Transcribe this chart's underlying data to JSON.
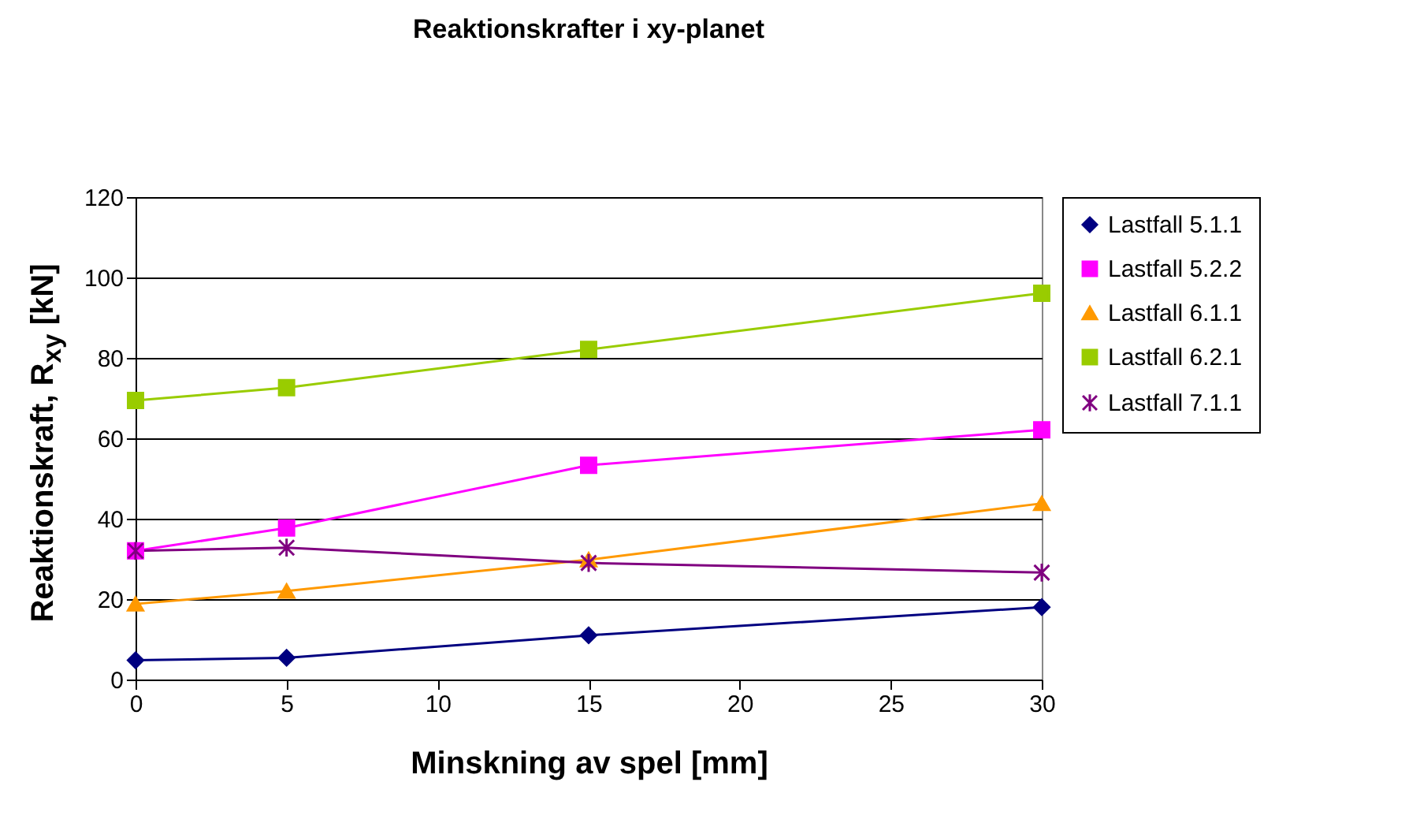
{
  "chart_data": {
    "type": "line",
    "title": "Reaktionskrafter i xy-planet",
    "xlabel": "Minskning av spel [mm]",
    "ylabel": "Reaktionskraft, R$_{xy}$ [kN]",
    "x": [
      0,
      5,
      15,
      30
    ],
    "series": [
      {
        "name": "Lastfall 5.1.1",
        "color": "#000080",
        "marker": "diamond",
        "values": [
          4.8,
          5.4,
          11.0,
          18.0
        ]
      },
      {
        "name": "Lastfall 5.2.2",
        "color": "#ff00ff",
        "marker": "square",
        "values": [
          32.0,
          37.7,
          53.3,
          62.1
        ]
      },
      {
        "name": "Lastfall 6.1.1",
        "color": "#ff9900",
        "marker": "triangle",
        "values": [
          18.8,
          22.0,
          29.8,
          43.8
        ]
      },
      {
        "name": "Lastfall 6.2.1",
        "color": "#99cc00",
        "marker": "square",
        "values": [
          69.4,
          72.6,
          82.1,
          96.1
        ]
      },
      {
        "name": "Lastfall 7.1.1",
        "color": "#800080",
        "marker": "cross",
        "values": [
          32.0,
          32.8,
          29.0,
          26.6
        ]
      }
    ],
    "xlim": [
      0,
      30
    ],
    "xticks": [
      0,
      5,
      10,
      15,
      20,
      25,
      30
    ],
    "ylim": [
      0,
      120
    ],
    "yticks": [
      0,
      20,
      40,
      60,
      80,
      100,
      120
    ],
    "grid": "y",
    "legend": "right",
    "line_style": "solid"
  }
}
